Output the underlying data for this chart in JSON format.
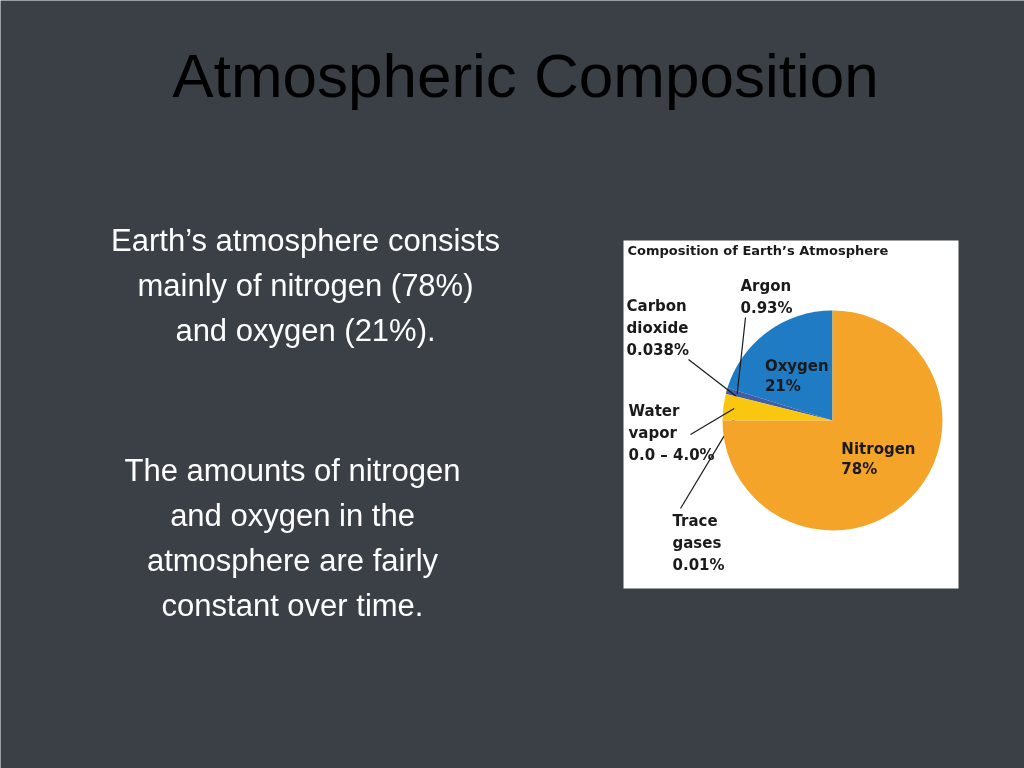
{
  "chart_data": {
    "type": "pie",
    "title": "Atmospheric Composition",
    "subtitle": "Composition of Earth’s Atmosphere",
    "categories": [
      "Oxygen",
      "Argon",
      "Carbon dioxide",
      "Water vapor\n0.0 – 4.0%",
      "Trace gases",
      "Nitrogen"
    ],
    "values": [
      21,
      0.93,
      0.038,
      4.0,
      0.01,
      78
    ],
    "value_labels": [
      "21%",
      "0.93%",
      "0.038%",
      null,
      "0.01%",
      "78%"
    ],
    "colors": [
      "#1e7bc4",
      "#3d5fa8",
      "#a3213f",
      "#f9c80e",
      "#f3b21a",
      "#f5a42a"
    ],
    "annotations": [
      "Earth’s atmosphere consists\nmainly of nitrogen (78%)\nand oxygen (21%).",
      "The amounts of nitrogen\nand oxygen in the\natmosphere are fairly\nconstant over time."
    ]
  }
}
